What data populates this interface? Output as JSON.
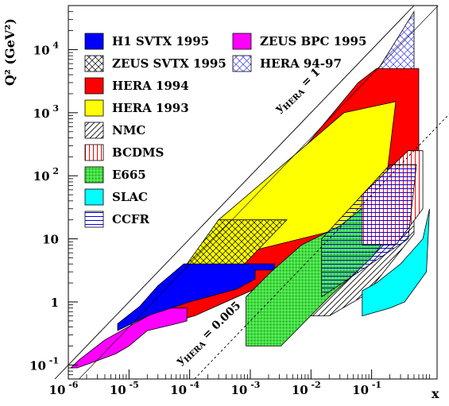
{
  "chart_data": {
    "type": "area",
    "title": "",
    "xlabel": "x",
    "ylabel": "Q²  (GeV²)",
    "xscale": "log",
    "yscale": "log",
    "xlim": [
      1e-06,
      1.2
    ],
    "ylim": [
      0.06,
      50000
    ],
    "x_ticks": [
      {
        "mant": "10",
        "exp": "-6"
      },
      {
        "mant": "10",
        "exp": "-5"
      },
      {
        "mant": "10",
        "exp": "-4"
      },
      {
        "mant": "10",
        "exp": "-3"
      },
      {
        "mant": "10",
        "exp": "-2"
      },
      {
        "mant": "10",
        "exp": "-1"
      }
    ],
    "y_ticks": [
      {
        "mant": "10",
        "exp": "-1"
      },
      {
        "mant": "1",
        "exp": ""
      },
      {
        "mant": "10",
        "exp": ""
      },
      {
        "mant": "10",
        "exp": "2"
      },
      {
        "mant": "10",
        "exp": "3"
      },
      {
        "mant": "10",
        "exp": "4"
      }
    ],
    "annotations": [
      {
        "main": "y",
        "sub": "HERA",
        "rest": " = 1"
      },
      {
        "main": "y",
        "sub": "HERA",
        "rest": " = 0.005"
      }
    ],
    "legend_position": "top-left",
    "legend": [
      {
        "label": "H1 SVTX 1995",
        "color": "#0000ff",
        "pattern": "solid"
      },
      {
        "label": "ZEUS SVTX 1995",
        "color": "#000000",
        "pattern": "crosshatch"
      },
      {
        "label": "HERA 1994",
        "color": "#ff0000",
        "pattern": "solid"
      },
      {
        "label": "HERA 1993",
        "color": "#ffff00",
        "pattern": "solid"
      },
      {
        "label": "NMC",
        "color": "#000000",
        "pattern": "diagonal"
      },
      {
        "label": "BCDMS",
        "color": "#ff0000",
        "pattern": "vertical"
      },
      {
        "label": "E665",
        "color": "#33cc33",
        "pattern": "dotted"
      },
      {
        "label": "SLAC",
        "color": "#00ffff",
        "pattern": "solid"
      },
      {
        "label": "CCFR",
        "color": "#0000ff",
        "pattern": "horizontal"
      },
      {
        "label": "ZEUS BPC 1995",
        "color": "#ff00ff",
        "pattern": "solid"
      },
      {
        "label": "HERA 94-97",
        "color": "#4444ff",
        "pattern": "crosshatch"
      }
    ],
    "series": [
      {
        "name": "HERA 94-97",
        "polygon": [
          [
            0.5,
            40000
          ],
          [
            0.5,
            5000
          ],
          [
            0.13,
            5000
          ]
        ]
      },
      {
        "name": "HERA 1994",
        "polygon": [
          [
            2.5e-05,
            0.4
          ],
          [
            0.00012,
            0.6
          ],
          [
            0.002,
            2
          ],
          [
            0.006,
            4
          ],
          [
            0.02,
            7
          ],
          [
            0.08,
            15
          ],
          [
            0.3,
            30
          ],
          [
            0.6,
            40
          ],
          [
            0.6,
            5000
          ],
          [
            0.12,
            5000
          ],
          [
            0.06,
            3000
          ],
          [
            0.0002,
            4
          ],
          [
            4e-05,
            1
          ]
        ]
      },
      {
        "name": "HERA 1993",
        "polygon": [
          [
            7e-05,
            3
          ],
          [
            0.0015,
            7
          ],
          [
            0.02,
            13
          ],
          [
            0.15,
            26
          ],
          [
            0.25,
            1500
          ],
          [
            0.035,
            1000
          ],
          [
            0.0003,
            20
          ],
          [
            0.0001,
            4
          ]
        ]
      },
      {
        "name": "ZEUS SVTX 1995",
        "polygon": [
          [
            9e-05,
            4
          ],
          [
            0.0003,
            20
          ],
          [
            0.004,
            20
          ],
          [
            0.0007,
            3.5
          ]
        ]
      },
      {
        "name": "ZEUS BPC 1995",
        "polygon": [
          [
            1.1e-06,
            0.09
          ],
          [
            1.4e-06,
            0.09
          ],
          [
            2.5e-06,
            0.11
          ],
          [
            6e-06,
            0.15
          ],
          [
            1e-05,
            0.2
          ],
          [
            2e-05,
            0.35
          ],
          [
            6e-05,
            0.45
          ],
          [
            9e-05,
            0.5
          ],
          [
            9e-05,
            0.8
          ],
          [
            3.5e-05,
            0.8
          ],
          [
            1.2e-05,
            0.45
          ],
          [
            4e-06,
            0.25
          ],
          [
            1.5e-06,
            0.12
          ]
        ]
      },
      {
        "name": "H1 SVTX 1995",
        "polygon": [
          [
            6.5e-06,
            0.35
          ],
          [
            2e-05,
            0.6
          ],
          [
            0.0001,
            1
          ],
          [
            0.0006,
            1.6
          ],
          [
            0.0012,
            2.3
          ],
          [
            0.0012,
            3.2
          ],
          [
            0.0025,
            3.2
          ],
          [
            0.0025,
            4
          ],
          [
            8e-05,
            4
          ],
          [
            3e-05,
            1.8
          ],
          [
            1.5e-05,
            0.85
          ],
          [
            6.5e-06,
            0.45
          ]
        ]
      },
      {
        "name": "NMC",
        "polygon": [
          [
            0.0022,
            0.6
          ],
          [
            0.02,
            0.6
          ],
          [
            0.08,
            1.3
          ],
          [
            0.5,
            12
          ],
          [
            0.5,
            20
          ],
          [
            0.22,
            20
          ],
          [
            0.05,
            3
          ],
          [
            0.005,
            1.5
          ],
          [
            0.0022,
            3
          ]
        ]
      },
      {
        "name": "E665",
        "polygon": [
          [
            0.00085,
            0.2
          ],
          [
            0.0032,
            0.2
          ],
          [
            0.02,
            1.2
          ],
          [
            0.1,
            5
          ],
          [
            0.3,
            20
          ],
          [
            0.4,
            55
          ],
          [
            0.15,
            55
          ],
          [
            0.03,
            16
          ],
          [
            0.007,
            8
          ],
          [
            0.0022,
            3
          ],
          [
            0.00085,
            1.2
          ]
        ]
      },
      {
        "name": "BCDMS",
        "polygon": [
          [
            0.07,
            8
          ],
          [
            0.25,
            8
          ],
          [
            0.7,
            30
          ],
          [
            0.7,
            250
          ],
          [
            0.4,
            250
          ],
          [
            0.07,
            50
          ]
        ]
      },
      {
        "name": "CCFR",
        "polygon": [
          [
            0.015,
            1.2
          ],
          [
            0.4,
            10
          ],
          [
            0.55,
            150
          ],
          [
            0.2,
            150
          ],
          [
            0.015,
            10
          ]
        ]
      },
      {
        "name": "SLAC",
        "polygon": [
          [
            0.07,
            0.6
          ],
          [
            0.2,
            0.8
          ],
          [
            0.35,
            1
          ],
          [
            0.8,
            3
          ],
          [
            0.9,
            30
          ],
          [
            0.7,
            10
          ],
          [
            0.3,
            4
          ],
          [
            0.12,
            2
          ],
          [
            0.07,
            1.5
          ]
        ]
      }
    ]
  }
}
